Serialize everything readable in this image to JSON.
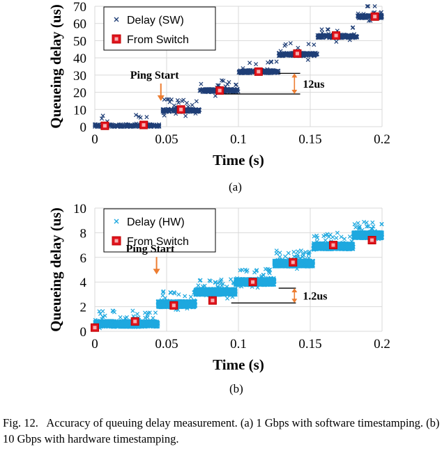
{
  "chart_data": [
    {
      "type": "scatter",
      "title": "",
      "xlabel": "Time (s)",
      "ylabel": "Queueing delay (us)",
      "xlim": [
        0,
        0.2
      ],
      "ylim": [
        0,
        70
      ],
      "xticks": [
        "0",
        "0.05",
        "0.1",
        "0.15",
        "0.2"
      ],
      "yticks": [
        "0",
        "10",
        "20",
        "30",
        "40",
        "50",
        "60",
        "70"
      ],
      "grid": true,
      "legend_position": "top-left",
      "series": [
        {
          "name": "Delay (SW)",
          "marker": "x",
          "color": "#1f3e76",
          "clusters": [
            {
              "x_start": 0.0,
              "x_end": 0.045,
              "y": 0.5
            },
            {
              "x_start": 0.047,
              "x_end": 0.073,
              "y": 9.5
            },
            {
              "x_start": 0.073,
              "x_end": 0.1,
              "y": 21
            },
            {
              "x_start": 0.1,
              "x_end": 0.128,
              "y": 32
            },
            {
              "x_start": 0.128,
              "x_end": 0.155,
              "y": 42
            },
            {
              "x_start": 0.155,
              "x_end": 0.183,
              "y": 52.5
            },
            {
              "x_start": 0.183,
              "x_end": 0.2,
              "y": 64
            }
          ]
        },
        {
          "name": "From Switch",
          "marker": "square",
          "color": "#e0141e",
          "x": [
            0.007,
            0.034,
            0.06,
            0.087,
            0.114,
            0.141,
            0.168,
            0.195
          ],
          "y": [
            0.5,
            1,
            10,
            21,
            32,
            42.5,
            53,
            64
          ]
        }
      ],
      "annotations": [
        {
          "text": "Ping Start",
          "x": 0.046,
          "y": 17
        },
        {
          "text": "12us",
          "x": 0.14,
          "y": 25
        }
      ]
    },
    {
      "type": "scatter",
      "title": "",
      "xlabel": "Time (s)",
      "ylabel": "Queueing delay (us)",
      "xlim": [
        0,
        0.2
      ],
      "ylim": [
        0,
        10
      ],
      "xticks": [
        "0",
        "0.05",
        "0.1",
        "0.15",
        "0.2"
      ],
      "yticks": [
        "0",
        "2",
        "4",
        "6",
        "8",
        "10"
      ],
      "grid": true,
      "legend_position": "top-left",
      "series": [
        {
          "name": "Delay (HW)",
          "marker": "x",
          "color": "#1ea8df",
          "clusters": [
            {
              "x_start": 0.0,
              "x_end": 0.044,
              "y": 0.6
            },
            {
              "x_start": 0.044,
              "x_end": 0.07,
              "y": 2.2
            },
            {
              "x_start": 0.07,
              "x_end": 0.098,
              "y": 3.2
            },
            {
              "x_start": 0.098,
              "x_end": 0.125,
              "y": 4.0
            },
            {
              "x_start": 0.125,
              "x_end": 0.152,
              "y": 5.5
            },
            {
              "x_start": 0.152,
              "x_end": 0.18,
              "y": 6.9
            },
            {
              "x_start": 0.18,
              "x_end": 0.2,
              "y": 7.8
            }
          ]
        },
        {
          "name": "From Switch",
          "marker": "square",
          "color": "#e0141e",
          "x": [
            0.0,
            0.028,
            0.055,
            0.082,
            0.11,
            0.138,
            0.166,
            0.193
          ],
          "y": [
            0.3,
            0.8,
            2.1,
            2.5,
            4.0,
            5.6,
            7.0,
            7.4
          ]
        }
      ],
      "annotations": [
        {
          "text": "Ping Start",
          "x": 0.043,
          "y": 4.9
        },
        {
          "text": "1.2us",
          "x": 0.13,
          "y": 3.0
        }
      ]
    }
  ],
  "sublabels": {
    "a": "(a)",
    "b": "(b)"
  },
  "caption": {
    "fig_label": "Fig. 12.",
    "text": "Accuracy of queuing delay measurement. (a) 1 Gbps with software timestamping. (b) 10 Gbps with hardware timestamping."
  }
}
